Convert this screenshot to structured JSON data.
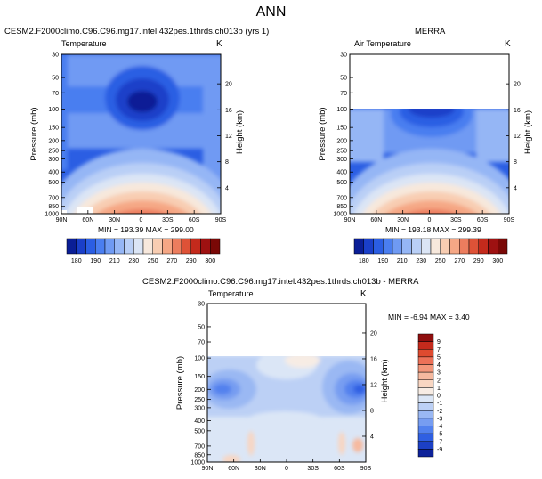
{
  "title": "ANN",
  "axes_common": {
    "pressure_label": "Pressure (mb)",
    "height_label": "Height (km)",
    "unit": "K",
    "pressure_ticks": [
      "30",
      "50",
      "70",
      "100",
      "150",
      "200",
      "250",
      "300",
      "400",
      "500",
      "700",
      "850",
      "1000"
    ],
    "height_ticks": [
      "20",
      "16",
      "12",
      "8",
      "4"
    ],
    "lat_ticks": [
      "90N",
      "60N",
      "30N",
      "0",
      "30S",
      "60S",
      "90S"
    ]
  },
  "panels": {
    "model": {
      "header": "CESM2.F2000climo.C96.C96.mg17.intel.432pes.1thrds.ch013b (yrs 1)",
      "variable": "Temperature",
      "stats": "MIN = 193.39   MAX = 299.00"
    },
    "obs": {
      "header": "MERRA",
      "variable": "Air Temperature",
      "stats": "MIN = 193.18   MAX = 299.39"
    },
    "diff": {
      "header": "CESM2.F2000climo.C96.C96.mg17.intel.432pes.1thrds.ch013b - MERRA",
      "variable": "Temperature",
      "stats": "MIN =  -6.94   MAX =   3.40"
    }
  },
  "colorbar_main": {
    "labels": [
      "180",
      "190",
      "210",
      "230",
      "250",
      "270",
      "290",
      "300"
    ],
    "colors": [
      "#0a1e96",
      "#1a3fc9",
      "#2b5ee3",
      "#4a7ef0",
      "#6f9af3",
      "#95b6f5",
      "#b9cff6",
      "#dbe5f5",
      "#f7e8dc",
      "#f8cdb2",
      "#f5a785",
      "#ec7d5e",
      "#de5237",
      "#c42a1c",
      "#9e1111",
      "#7a0806"
    ]
  },
  "colorbar_diff": {
    "labels": [
      "9",
      "7",
      "5",
      "4",
      "3",
      "2",
      "1",
      "0",
      "-1",
      "-2",
      "-3",
      "-4",
      "-5",
      "-7",
      "-9"
    ],
    "colors": [
      "#8f0e0e",
      "#c42a1c",
      "#de4a2f",
      "#ec7158",
      "#f3977b",
      "#f6b99f",
      "#f8d6c2",
      "#f7ece4",
      "#dbe6f6",
      "#bcd0f5",
      "#9ab8f3",
      "#779df1",
      "#5281ee",
      "#2f5fe2",
      "#1c40c5",
      "#0d229a"
    ]
  },
  "chart_data": [
    {
      "type": "heatmap",
      "title": "CESM2.F2000climo.C96.C96.mg17.intel.432pes.1thrds.ch013b (yrs 1) — Temperature",
      "xlabel": "",
      "ylabel": "Pressure (mb)",
      "y2label": "Height (km)",
      "x_ticks": [
        "90N",
        "60N",
        "30N",
        "0",
        "30S",
        "60S",
        "90S"
      ],
      "y_ticks": [
        "30",
        "50",
        "70",
        "100",
        "150",
        "200",
        "250",
        "300",
        "400",
        "500",
        "700",
        "850",
        "1000"
      ],
      "y2_ticks": [
        20,
        16,
        12,
        8,
        4
      ],
      "unit": "K",
      "min": 193.39,
      "max": 299.0,
      "contour_levels": [
        180,
        185,
        190,
        200,
        210,
        220,
        230,
        240,
        250,
        260,
        270,
        280,
        290,
        295,
        300
      ],
      "description_values": {
        "tropical_tropopause_min": 195,
        "surface_equator_max": 299
      }
    },
    {
      "type": "heatmap",
      "title": "MERRA — Air Temperature",
      "xlabel": "",
      "ylabel": "Pressure (mb)",
      "y2label": "Height (km)",
      "x_ticks": [
        "90N",
        "60N",
        "30N",
        "0",
        "30S",
        "60S",
        "90S"
      ],
      "y_ticks": [
        "30",
        "50",
        "70",
        "100",
        "150",
        "200",
        "250",
        "300",
        "400",
        "500",
        "700",
        "850",
        "1000"
      ],
      "y2_ticks": [
        20,
        16,
        12,
        8,
        4
      ],
      "unit": "K",
      "min": 193.18,
      "max": 299.39,
      "data_range_mb": [
        100,
        1000
      ]
    },
    {
      "type": "heatmap",
      "title": "CESM2.F2000climo.C96.C96.mg17.intel.432pes.1thrds.ch013b - MERRA — Temperature",
      "xlabel": "",
      "ylabel": "Pressure (mb)",
      "y2label": "Height (km)",
      "x_ticks": [
        "90N",
        "60N",
        "30N",
        "0",
        "30S",
        "60S",
        "90S"
      ],
      "y_ticks": [
        "30",
        "50",
        "70",
        "100",
        "150",
        "200",
        "250",
        "300",
        "400",
        "500",
        "700",
        "850",
        "1000"
      ],
      "y2_ticks": [
        20,
        16,
        12,
        8,
        4
      ],
      "unit": "K",
      "min": -6.94,
      "max": 3.4,
      "contour_levels": [
        -9,
        -7,
        -5,
        -4,
        -3,
        -2,
        -1,
        0,
        1,
        2,
        3,
        4,
        5,
        7,
        9
      ],
      "data_range_mb": [
        100,
        1000
      ]
    }
  ]
}
